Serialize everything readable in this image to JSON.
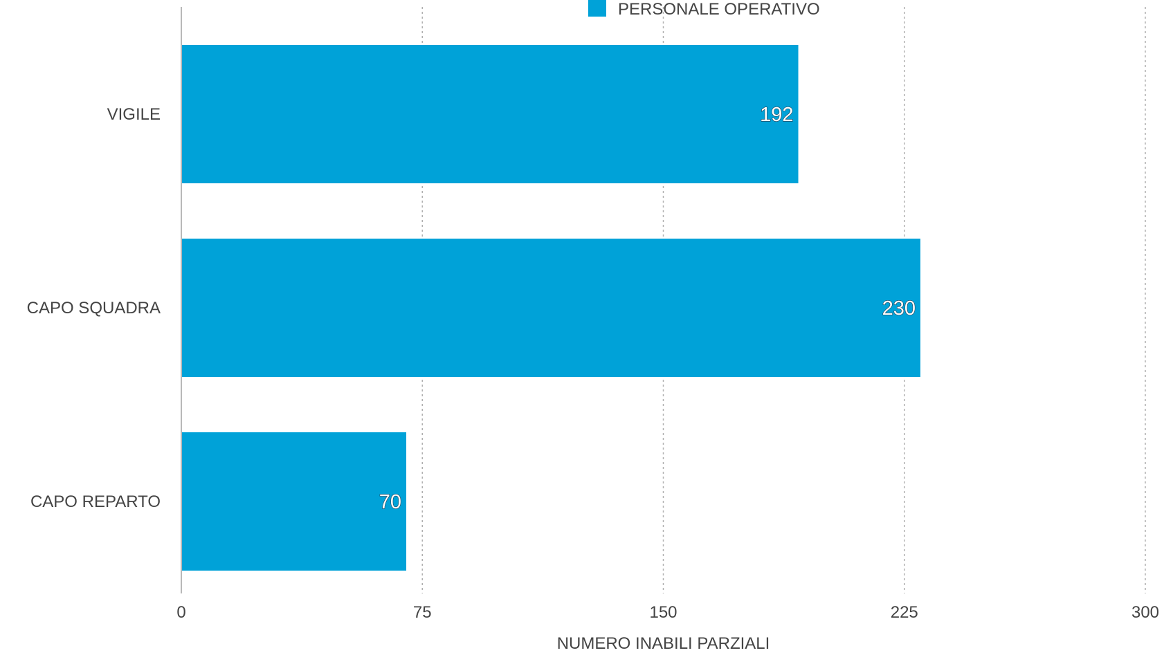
{
  "chart_data": {
    "type": "bar",
    "orientation": "horizontal",
    "categories": [
      "VIGILE",
      "CAPO SQUADRA",
      "CAPO REPARTO"
    ],
    "series": [
      {
        "name": "PERSONALE OPERATIVO",
        "values": [
          192,
          230,
          70
        ],
        "color": "#00a2d8"
      }
    ],
    "data_labels": [
      "192",
      "230",
      "70"
    ],
    "xlabel": "NUMERO INABILI PARZIALI",
    "ylabel": "",
    "xlim": [
      0,
      300
    ],
    "x_ticks": [
      0,
      75,
      150,
      225,
      300
    ],
    "x_tick_labels": [
      "0",
      "75",
      "150",
      "225",
      "300"
    ],
    "grid": "vertical dashed",
    "legend_position": "top-center",
    "colors": {
      "bar": "#00a2d8",
      "text": "#444444",
      "grid": "#b0b0b0"
    }
  }
}
